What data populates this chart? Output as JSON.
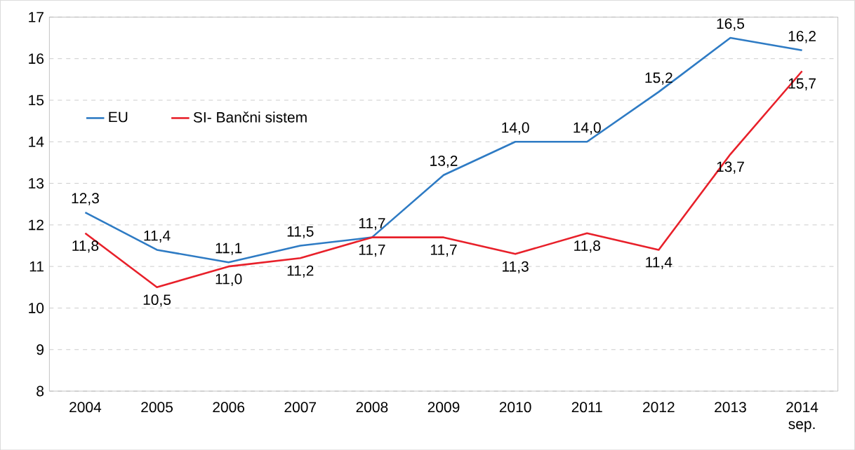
{
  "chart_data": {
    "type": "line",
    "categories": [
      "2004",
      "2005",
      "2006",
      "2007",
      "2008",
      "2009",
      "2010",
      "2011",
      "2012",
      "2013",
      "2014 sep."
    ],
    "series": [
      {
        "name": "EU",
        "color": "#2e7bc4",
        "values": [
          12.3,
          11.4,
          11.1,
          11.5,
          11.7,
          13.2,
          14.0,
          14.0,
          15.2,
          16.5,
          16.2
        ],
        "value_labels": [
          "12,3",
          "11,4",
          "11,1",
          "11,5",
          "11,7",
          "13,2",
          "14,0",
          "14,0",
          "15,2",
          "16,5",
          "16,2"
        ]
      },
      {
        "name": "SI- Bančni sistem",
        "color": "#e8202a",
        "values": [
          11.8,
          10.5,
          11.0,
          11.2,
          11.7,
          11.7,
          11.3,
          11.8,
          11.4,
          13.7,
          15.7
        ],
        "value_labels": [
          "11,8",
          "10,5",
          "11,0",
          "11,2",
          "11,7",
          "11,7",
          "11,3",
          "11,8",
          "11,4",
          "13,7",
          "15,7"
        ]
      }
    ],
    "ylim": [
      8,
      17
    ],
    "yticks": [
      8,
      9,
      10,
      11,
      12,
      13,
      14,
      15,
      16,
      17
    ],
    "grid": "y",
    "legend": "top left",
    "marker": "none",
    "line_style": "solid"
  }
}
